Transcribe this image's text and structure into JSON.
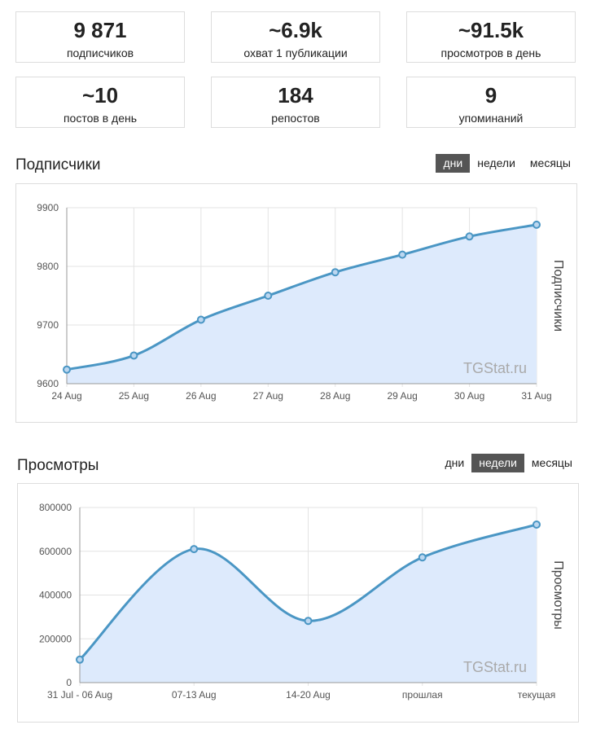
{
  "stats": [
    {
      "value": "9 871",
      "label": "подписчиков"
    },
    {
      "value": "~6.9k",
      "label": "охват 1 публикации"
    },
    {
      "value": "~91.5k",
      "label": "просмотров в день"
    },
    {
      "value": "~10",
      "label": "постов в день"
    },
    {
      "value": "184",
      "label": "репостов"
    },
    {
      "value": "9",
      "label": "упоминаний"
    }
  ],
  "periods": [
    "дни",
    "недели",
    "месяцы"
  ],
  "watermark": "TGStat.ru",
  "chart_data": [
    {
      "type": "area",
      "title": "Подписчики",
      "active_period": "дни",
      "ylabel": "Подписчики",
      "x": [
        "24 Aug",
        "25 Aug",
        "26 Aug",
        "27 Aug",
        "28 Aug",
        "29 Aug",
        "30 Aug",
        "31 Aug"
      ],
      "values": [
        9624,
        9648,
        9709,
        9750,
        9790,
        9820,
        9851,
        9871
      ],
      "ylim": [
        9600,
        9900
      ],
      "yticks": [
        "9600",
        "9700",
        "9800",
        "9900"
      ],
      "grid": true,
      "color": "#4a96c4",
      "fill": "#ddeafc"
    },
    {
      "type": "area",
      "title": "Просмотры",
      "active_period": "недели",
      "ylabel": "Просмотры",
      "x": [
        "31 Jul - 06 Aug",
        "07-13 Aug",
        "14-20 Aug",
        "прошлая",
        "текущая"
      ],
      "values": [
        105000,
        610000,
        282000,
        572000,
        722000
      ],
      "ylim": [
        0,
        800000
      ],
      "yticks": [
        "0",
        "200000",
        "400000",
        "600000",
        "800000"
      ],
      "grid": true,
      "color": "#4a96c4",
      "fill": "#ddeafc"
    }
  ]
}
